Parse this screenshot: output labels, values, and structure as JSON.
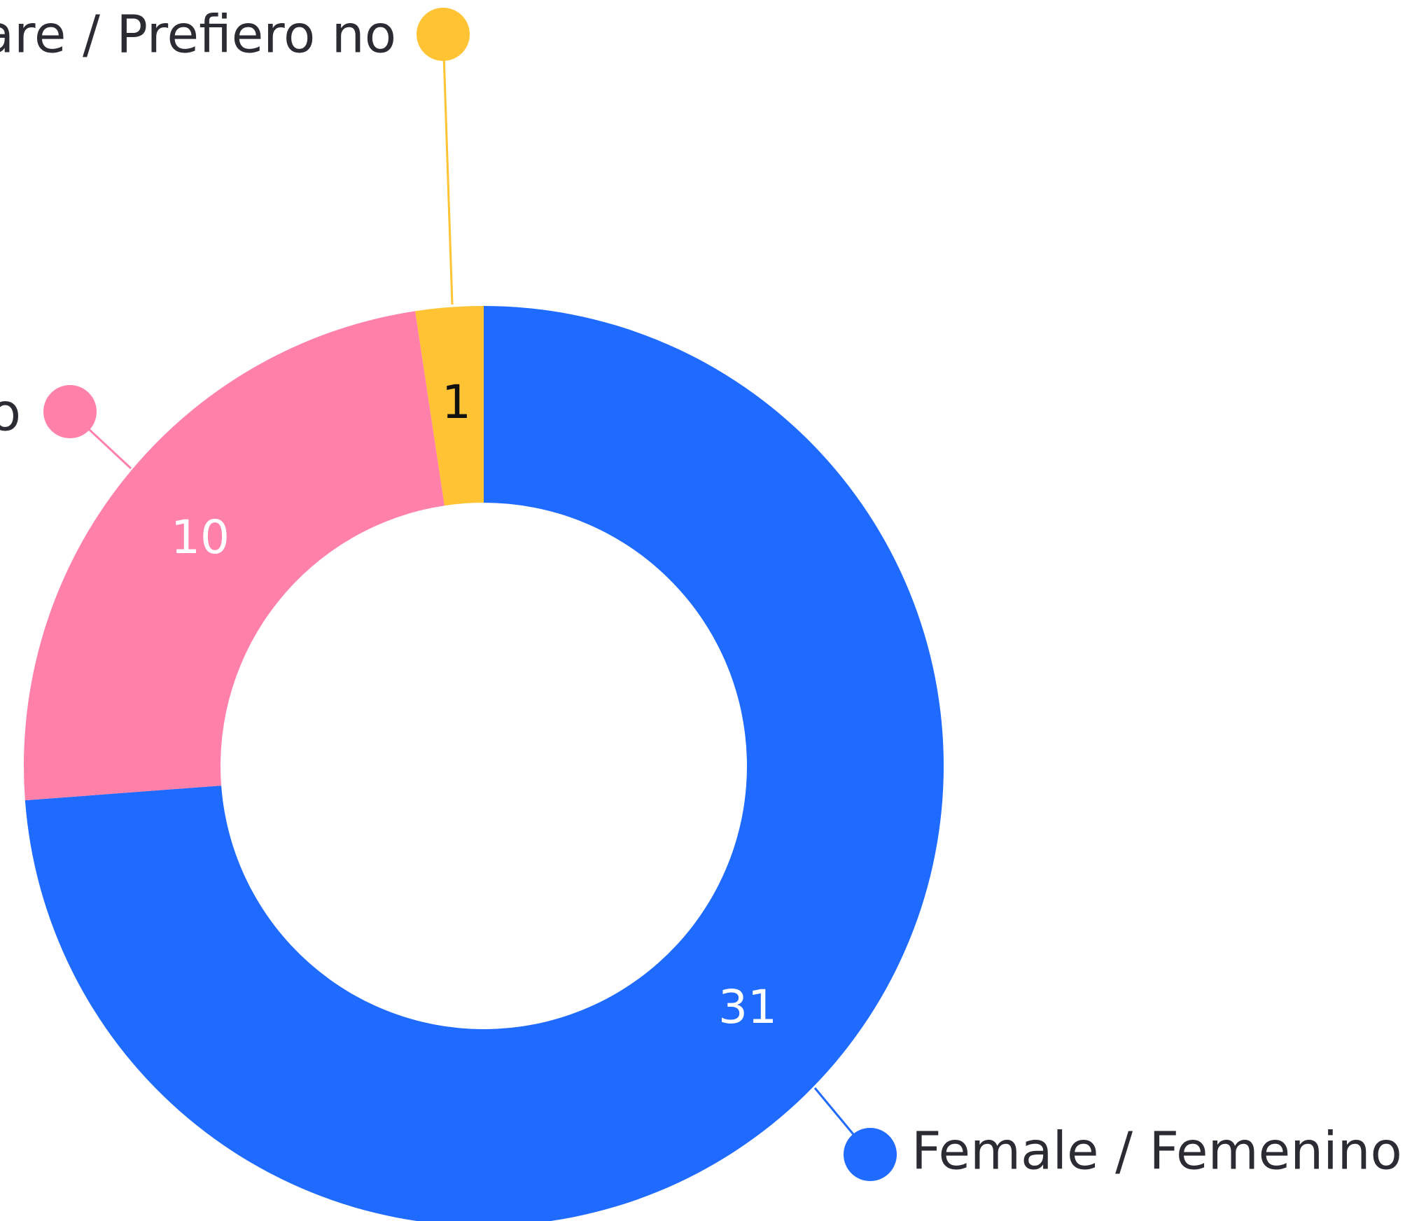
{
  "chart_data": {
    "type": "donut",
    "categories": [
      "Female / Femenino",
      "o",
      "are / Prefiero no"
    ],
    "values": [
      31,
      10,
      1
    ],
    "colors": [
      "#1f6bff",
      "#ff80a8",
      "#ffc334"
    ]
  }
}
